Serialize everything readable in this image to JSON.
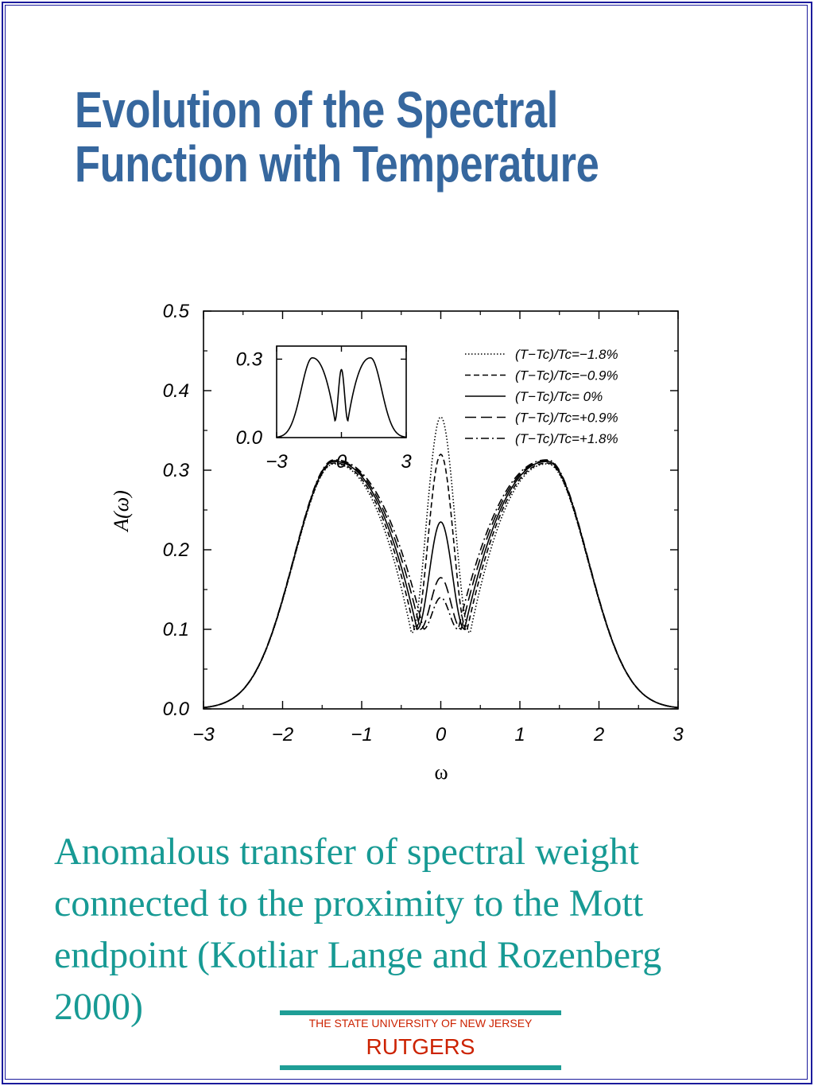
{
  "slide": {
    "title_line1": "Evolution of the Spectral",
    "title_line2": "Function with Temperature",
    "caption_lines": [
      "Anomalous transfer of spectral weight",
      "connected to the proximity to the Mott",
      "endpoint (Kotliar Lange and Rozenberg",
      "2000)"
    ],
    "logo": {
      "line1": "THE STATE UNIVERSITY OF NEW JERSEY",
      "line2": "RUTGERS"
    }
  },
  "colors": {
    "title": "#36679e",
    "caption": "#179a94",
    "frame": "#1b1b9c",
    "logo_text": "#cc2200",
    "logo_bar": "#1f9e96"
  },
  "chart_data": {
    "type": "line",
    "xlabel": "ω",
    "ylabel": "A(ω)",
    "xlim": [
      -3,
      3
    ],
    "ylim": [
      0,
      0.5
    ],
    "x_ticks": [
      "−3",
      "−2",
      "−1",
      "0",
      "1",
      "2",
      "3"
    ],
    "y_ticks": [
      "0.0",
      "0.1",
      "0.2",
      "0.3",
      "0.4",
      "0.5"
    ],
    "legend_placement": "top-right",
    "series": [
      {
        "name": "(T−Tc)/Tc=−1.8%",
        "style": "dotted",
        "peak_height": 0.367,
        "dip_height": 0.095,
        "dip_position": 0.37,
        "hubbard_peak": 0.308
      },
      {
        "name": "(T−Tc)/Tc=−0.9%",
        "style": "dashed",
        "peak_height": 0.32,
        "dip_height": 0.098,
        "dip_position": 0.33,
        "hubbard_peak": 0.309
      },
      {
        "name": "(T−Tc)/Tc= 0%",
        "style": "solid",
        "peak_height": 0.235,
        "dip_height": 0.1,
        "dip_position": 0.3,
        "hubbard_peak": 0.311
      },
      {
        "name": "(T−Tc)/Tc=+0.9%",
        "style": "long-dashed",
        "peak_height": 0.165,
        "dip_height": 0.1,
        "dip_position": 0.26,
        "hubbard_peak": 0.312
      },
      {
        "name": "(T−Tc)/Tc=+1.8%",
        "style": "dash-dot",
        "peak_height": 0.14,
        "dip_height": 0.1,
        "dip_position": 0.22,
        "hubbard_peak": 0.313
      }
    ],
    "inset": {
      "xlim": [
        -3,
        3
      ],
      "ylim": [
        0,
        0.35
      ],
      "x_ticks": [
        "−3",
        "0",
        "3"
      ],
      "y_ticks": [
        "0.0",
        "0.3"
      ],
      "series": [
        {
          "style": "solid",
          "peak_height": 0.26,
          "dip_height": 0.065,
          "hubbard_peak": 0.305
        }
      ]
    }
  }
}
